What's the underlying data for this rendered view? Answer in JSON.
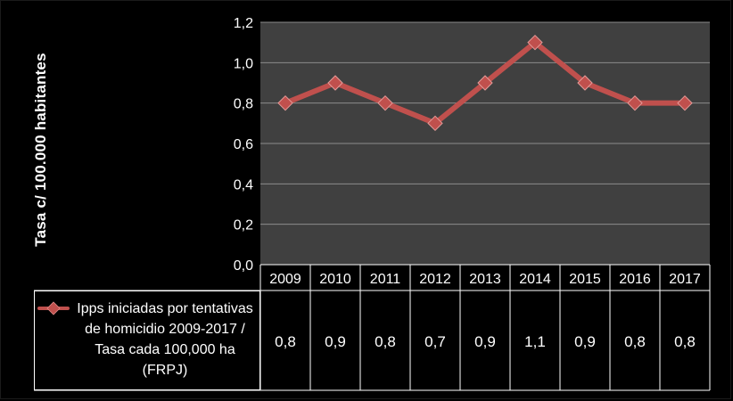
{
  "chart_data": {
    "type": "line",
    "ylabel": "Tasa c/ 100.000 habitantes",
    "ylim": [
      0,
      1.2
    ],
    "y_ticks": [
      "0,0",
      "0,2",
      "0,4",
      "0,6",
      "0,8",
      "1,0",
      "1,2"
    ],
    "categories": [
      "2009",
      "2010",
      "2011",
      "2012",
      "2013",
      "2014",
      "2015",
      "2016",
      "2017"
    ],
    "series": [
      {
        "name": "Ipps iniciadas por tentativas de homicidio 2009-2017 / Tasa cada 100,000 ha (FRPJ)",
        "values": [
          0.8,
          0.9,
          0.8,
          0.7,
          0.9,
          1.1,
          0.9,
          0.8,
          0.8
        ],
        "labels": [
          "0,8",
          "0,9",
          "0,8",
          "0,7",
          "0,9",
          "1,1",
          "0,9",
          "0,8",
          "0,8"
        ],
        "color": "#c0504d"
      }
    ],
    "grid": true,
    "legend": "data-table",
    "plot_background": "#404040"
  }
}
